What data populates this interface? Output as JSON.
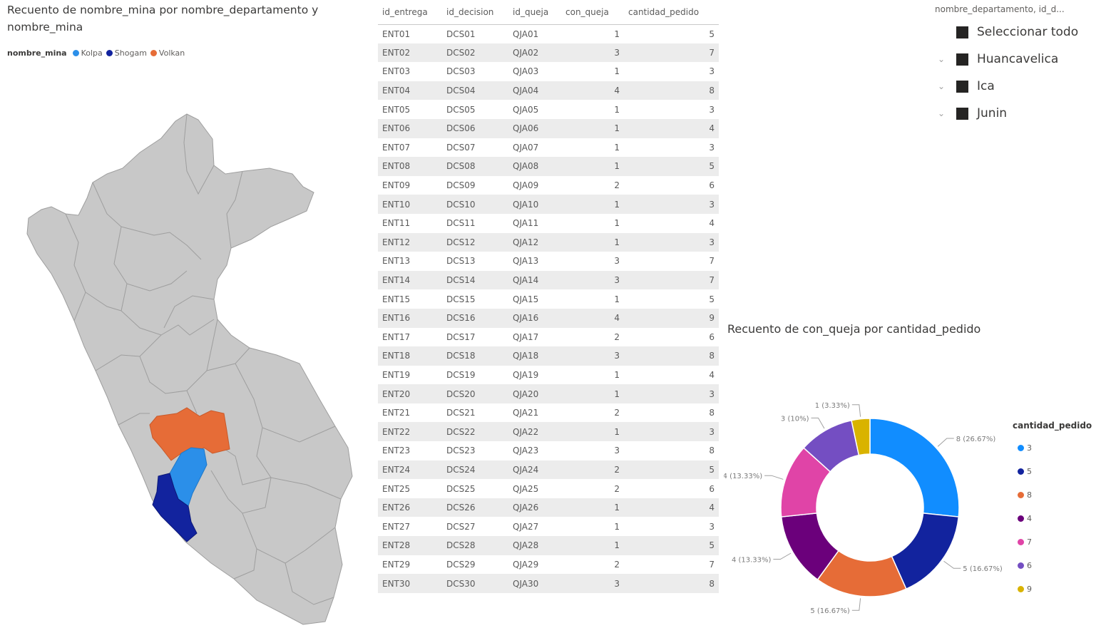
{
  "map": {
    "title": "Recuento de nombre_mina por nombre_departamento y nombre_mina",
    "legend_title": "nombre_mina",
    "legend": [
      {
        "label": "Kolpa",
        "color": "#2b8fe9"
      },
      {
        "label": "Shogam",
        "color": "#12239e"
      },
      {
        "label": "Volkan",
        "color": "#e66c37"
      }
    ]
  },
  "table": {
    "columns": [
      "id_entrega",
      "id_decision",
      "id_queja",
      "con_queja",
      "cantidad_pedido"
    ],
    "rows": [
      [
        "ENT01",
        "DCS01",
        "QJA01",
        "1",
        "5"
      ],
      [
        "ENT02",
        "DCS02",
        "QJA02",
        "3",
        "7"
      ],
      [
        "ENT03",
        "DCS03",
        "QJA03",
        "1",
        "3"
      ],
      [
        "ENT04",
        "DCS04",
        "QJA04",
        "4",
        "8"
      ],
      [
        "ENT05",
        "DCS05",
        "QJA05",
        "1",
        "3"
      ],
      [
        "ENT06",
        "DCS06",
        "QJA06",
        "1",
        "4"
      ],
      [
        "ENT07",
        "DCS07",
        "QJA07",
        "1",
        "3"
      ],
      [
        "ENT08",
        "DCS08",
        "QJA08",
        "1",
        "5"
      ],
      [
        "ENT09",
        "DCS09",
        "QJA09",
        "2",
        "6"
      ],
      [
        "ENT10",
        "DCS10",
        "QJA10",
        "1",
        "3"
      ],
      [
        "ENT11",
        "DCS11",
        "QJA11",
        "1",
        "4"
      ],
      [
        "ENT12",
        "DCS12",
        "QJA12",
        "1",
        "3"
      ],
      [
        "ENT13",
        "DCS13",
        "QJA13",
        "3",
        "7"
      ],
      [
        "ENT14",
        "DCS14",
        "QJA14",
        "3",
        "7"
      ],
      [
        "ENT15",
        "DCS15",
        "QJA15",
        "1",
        "5"
      ],
      [
        "ENT16",
        "DCS16",
        "QJA16",
        "4",
        "9"
      ],
      [
        "ENT17",
        "DCS17",
        "QJA17",
        "2",
        "6"
      ],
      [
        "ENT18",
        "DCS18",
        "QJA18",
        "3",
        "8"
      ],
      [
        "ENT19",
        "DCS19",
        "QJA19",
        "1",
        "4"
      ],
      [
        "ENT20",
        "DCS20",
        "QJA20",
        "1",
        "3"
      ],
      [
        "ENT21",
        "DCS21",
        "QJA21",
        "2",
        "8"
      ],
      [
        "ENT22",
        "DCS22",
        "QJA22",
        "1",
        "3"
      ],
      [
        "ENT23",
        "DCS23",
        "QJA23",
        "3",
        "8"
      ],
      [
        "ENT24",
        "DCS24",
        "QJA24",
        "2",
        "5"
      ],
      [
        "ENT25",
        "DCS25",
        "QJA25",
        "2",
        "6"
      ],
      [
        "ENT26",
        "DCS26",
        "QJA26",
        "1",
        "4"
      ],
      [
        "ENT27",
        "DCS27",
        "QJA27",
        "1",
        "3"
      ],
      [
        "ENT28",
        "DCS28",
        "QJA28",
        "1",
        "5"
      ],
      [
        "ENT29",
        "DCS29",
        "QJA29",
        "2",
        "7"
      ],
      [
        "ENT30",
        "DCS30",
        "QJA30",
        "3",
        "8"
      ]
    ]
  },
  "slicer": {
    "header": "nombre_departamento, id_d...",
    "items": [
      {
        "label": "Seleccionar todo",
        "expandable": false
      },
      {
        "label": "Huancavelica",
        "expandable": true
      },
      {
        "label": "Ica",
        "expandable": true
      },
      {
        "label": "Junin",
        "expandable": true
      }
    ],
    "chevron_icon": "chevron-down-icon"
  },
  "chart_data": {
    "type": "pie",
    "subtype": "donut",
    "title": "Recuento de con_queja por cantidad_pedido",
    "legend_title": "cantidad_pedido",
    "legend_position": "right",
    "slices": [
      {
        "label": "3",
        "value": 8,
        "data_label": "8 (26.67%)",
        "color": "#118dff"
      },
      {
        "label": "5",
        "value": 5,
        "data_label": "5 (16.67%)",
        "color": "#12239e"
      },
      {
        "label": "8",
        "value": 5,
        "data_label": "5 (16.67%)",
        "color": "#e66c37"
      },
      {
        "label": "4",
        "value": 4,
        "data_label": "4 (13.33%)",
        "color": "#6b007b"
      },
      {
        "label": "7",
        "value": 4,
        "data_label": "4 (13.33%)",
        "color": "#e044a7"
      },
      {
        "label": "6",
        "value": 3,
        "data_label": "3 (10%)",
        "color": "#744ec2"
      },
      {
        "label": "9",
        "value": 1,
        "data_label": "1 (3.33%)",
        "color": "#d9b300"
      }
    ]
  }
}
